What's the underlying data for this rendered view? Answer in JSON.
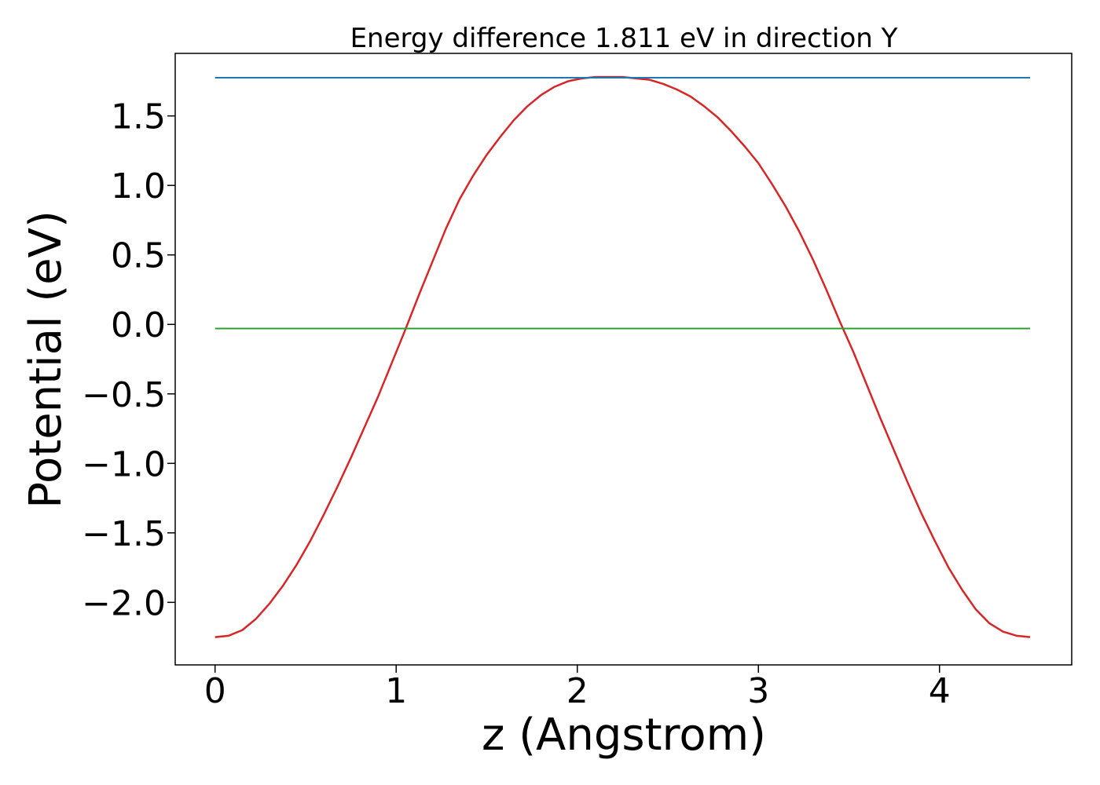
{
  "chart_data": {
    "type": "line",
    "title": "Energy difference 1.811 eV in direction Y",
    "xlabel": "z (Angstrom)",
    "ylabel": "Potential (eV)",
    "xlim": [
      -0.22,
      4.73
    ],
    "ylim": [
      -2.45,
      1.95
    ],
    "xticks": [
      0,
      1,
      2,
      3,
      4
    ],
    "xtick_labels": [
      "0",
      "1",
      "2",
      "3",
      "4"
    ],
    "yticks": [
      -2.0,
      -1.5,
      -1.0,
      -0.5,
      0.0,
      0.5,
      1.0,
      1.5
    ],
    "ytick_labels": [
      "−2.0",
      "−1.5",
      "−1.0",
      "−0.5",
      "0.0",
      "0.5",
      "1.0",
      "1.5"
    ],
    "grid": false,
    "legend": "none",
    "series": [
      {
        "color": "#d62728",
        "x": [
          0.0,
          0.075,
          0.15,
          0.225,
          0.3,
          0.375,
          0.45,
          0.525,
          0.6,
          0.675,
          0.75,
          0.825,
          0.9,
          0.975,
          1.05,
          1.125,
          1.2,
          1.275,
          1.35,
          1.425,
          1.5,
          1.575,
          1.65,
          1.725,
          1.8,
          1.875,
          1.95,
          2.025,
          2.1,
          2.175,
          2.25,
          2.325,
          2.4,
          2.475,
          2.55,
          2.625,
          2.7,
          2.775,
          2.85,
          2.925,
          3.0,
          3.075,
          3.15,
          3.225,
          3.3,
          3.375,
          3.45,
          3.525,
          3.6,
          3.675,
          3.75,
          3.825,
          3.9,
          3.975,
          4.05,
          4.125,
          4.2,
          4.275,
          4.35,
          4.425,
          4.5
        ],
        "y": [
          -2.25,
          -2.24,
          -2.2,
          -2.12,
          -2.01,
          -1.88,
          -1.73,
          -1.56,
          -1.37,
          -1.17,
          -0.96,
          -0.74,
          -0.52,
          -0.28,
          -0.04,
          0.21,
          0.45,
          0.69,
          0.9,
          1.07,
          1.22,
          1.35,
          1.47,
          1.57,
          1.65,
          1.71,
          1.75,
          1.77,
          1.78,
          1.78,
          1.78,
          1.77,
          1.76,
          1.73,
          1.69,
          1.64,
          1.57,
          1.49,
          1.39,
          1.28,
          1.16,
          1.01,
          0.85,
          0.67,
          0.47,
          0.25,
          0.02,
          -0.2,
          -0.44,
          -0.68,
          -0.91,
          -1.14,
          -1.36,
          -1.56,
          -1.75,
          -1.91,
          -2.05,
          -2.15,
          -2.21,
          -2.24,
          -2.25
        ]
      },
      {
        "color": "#1f77b4",
        "x": [
          0.0,
          4.5
        ],
        "y": [
          1.775,
          1.775
        ]
      },
      {
        "color": "#2ca02c",
        "x": [
          0.0,
          4.5
        ],
        "y": [
          -0.03,
          -0.03
        ]
      }
    ]
  }
}
